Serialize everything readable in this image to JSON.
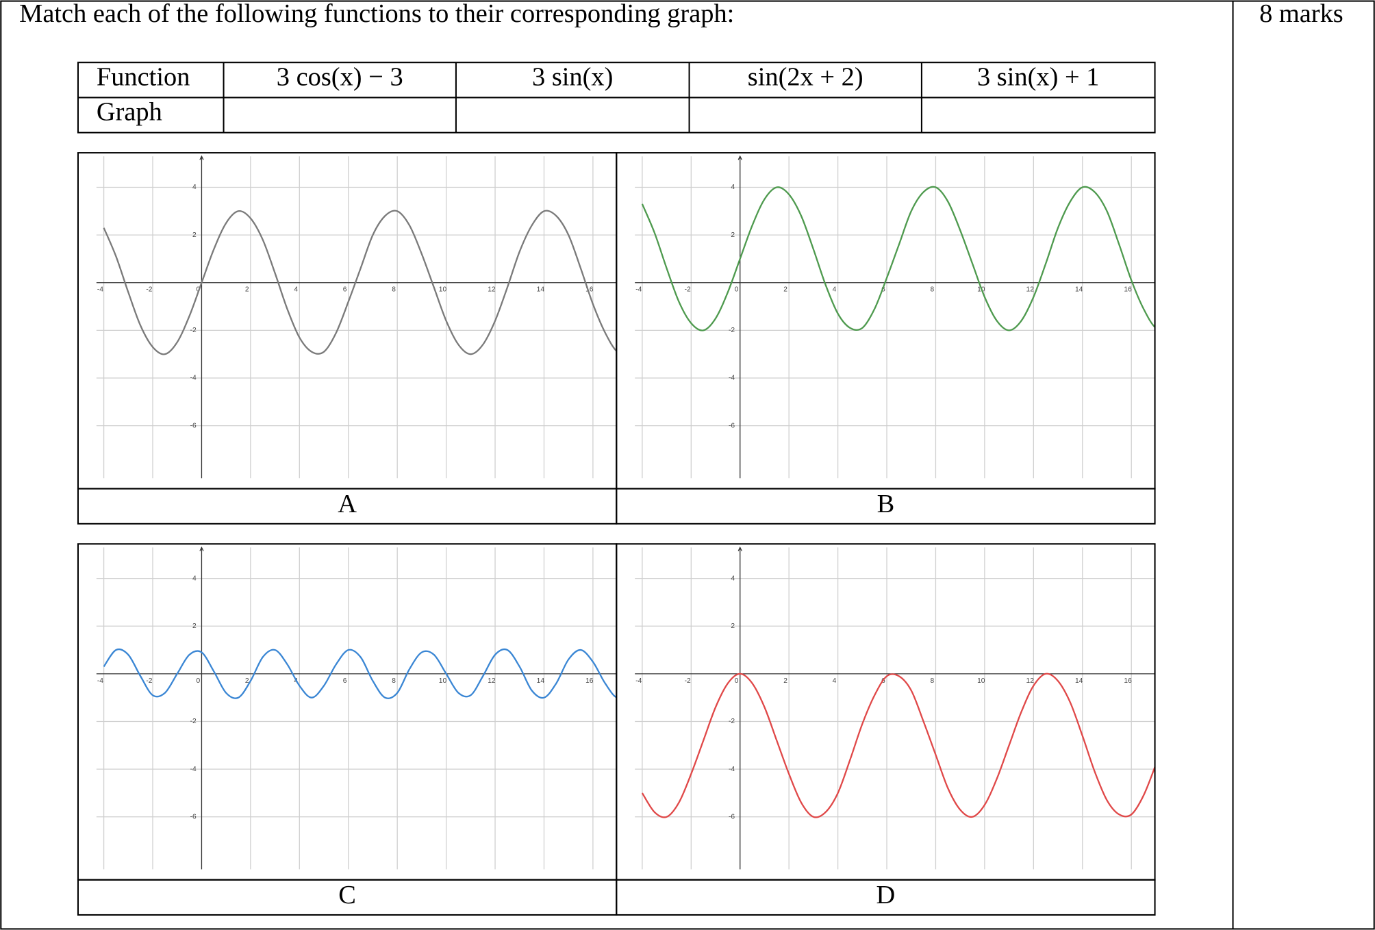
{
  "question": "Match each of the following functions to their corresponding graph:",
  "marks": "8 marks",
  "table": {
    "header": [
      "Function",
      "3 cos(x) − 3",
      "3 sin(x)",
      "sin(2x + 2)",
      "3 sin(x) + 1"
    ],
    "row_label": "Graph"
  },
  "chart_data": [
    {
      "type": "line",
      "label": "A",
      "color": "#7a7a7a",
      "x": [
        -4,
        -3.5,
        -3,
        -2.5,
        -2,
        -1.5,
        -1,
        -0.5,
        0,
        0.5,
        1,
        1.5,
        2,
        2.5,
        3,
        3.5,
        4,
        4.5,
        5,
        5.5,
        6,
        6.5,
        7,
        7.5,
        8,
        8.5,
        9,
        9.5,
        10,
        10.5,
        11,
        11.5,
        12,
        12.5,
        13,
        13.5,
        14,
        14.5,
        15,
        15.5,
        16,
        16.5,
        17,
        17.5
      ],
      "values": [
        2.3,
        1.1,
        -0.4,
        -1.8,
        -2.7,
        -3.0,
        -2.5,
        -1.4,
        0,
        1.4,
        2.5,
        3.0,
        2.7,
        1.8,
        0.4,
        -1.1,
        -2.3,
        -2.9,
        -2.9,
        -2.1,
        -0.8,
        0.6,
        2.0,
        2.8,
        3.0,
        2.4,
        1.2,
        -0.2,
        -1.6,
        -2.6,
        -3.0,
        -2.6,
        -1.6,
        -0.2,
        1.3,
        2.4,
        3.0,
        2.8,
        2.0,
        0.6,
        -0.9,
        -2.1,
        -2.9,
        -2.9
      ],
      "xlim": [
        -4.3,
        17.5
      ],
      "ylim": [
        -8.2,
        5.3
      ],
      "xticks": [
        -4,
        -2,
        0,
        2,
        4,
        6,
        8,
        10,
        12,
        14,
        16
      ],
      "yticks": [
        4,
        2,
        -2,
        -4,
        -6
      ],
      "grid": true
    },
    {
      "type": "line",
      "label": "B",
      "color": "#4e9a4e",
      "x": [
        -4,
        -3.5,
        -3,
        -2.5,
        -2,
        -1.5,
        -1,
        -0.5,
        0,
        0.5,
        1,
        1.5,
        2,
        2.5,
        3,
        3.5,
        4,
        4.5,
        5,
        5.5,
        6,
        6.5,
        7,
        7.5,
        8,
        8.5,
        9,
        9.5,
        10,
        10.5,
        11,
        11.5,
        12,
        12.5,
        13,
        13.5,
        14,
        14.5,
        15,
        15.5,
        16,
        16.5,
        17,
        17.5
      ],
      "values": [
        3.3,
        2.1,
        0.6,
        -0.8,
        -1.7,
        -2.0,
        -1.5,
        -0.4,
        1,
        2.4,
        3.5,
        4.0,
        3.7,
        2.8,
        1.4,
        -0.1,
        -1.3,
        -1.9,
        -1.9,
        -1.1,
        0.2,
        1.6,
        3.0,
        3.8,
        4.0,
        3.4,
        2.2,
        0.8,
        -0.6,
        -1.6,
        -2.0,
        -1.6,
        -0.6,
        0.8,
        2.3,
        3.4,
        4.0,
        3.8,
        3.0,
        1.6,
        0.1,
        -1.1,
        -1.9,
        -1.9
      ],
      "xlim": [
        -4.3,
        17.5
      ],
      "ylim": [
        -8.2,
        5.3
      ],
      "xticks": [
        -4,
        -2,
        0,
        2,
        4,
        6,
        8,
        10,
        12,
        14,
        16
      ],
      "yticks": [
        4,
        2,
        -2,
        -4,
        -6
      ],
      "grid": true
    },
    {
      "type": "line",
      "label": "C",
      "color": "#3a86d4",
      "x": [
        -4,
        -3.5,
        -3,
        -2.5,
        -2,
        -1.5,
        -1,
        -0.5,
        0,
        0.5,
        1,
        1.5,
        2,
        2.5,
        3,
        3.5,
        4,
        4.5,
        5,
        5.5,
        6,
        6.5,
        7,
        7.5,
        8,
        8.5,
        9,
        9.5,
        10,
        10.5,
        11,
        11.5,
        12,
        12.5,
        13,
        13.5,
        14,
        14.5,
        15,
        15.5,
        16,
        16.5,
        17,
        17.5
      ],
      "values": [
        0.3,
        1.0,
        0.8,
        -0.1,
        -0.9,
        -0.8,
        0,
        0.8,
        0.9,
        0.1,
        -0.8,
        -1.0,
        -0.3,
        0.7,
        1.0,
        0.4,
        -0.5,
        -1.0,
        -0.5,
        0.4,
        1.0,
        0.7,
        -0.3,
        -1.0,
        -0.8,
        0.2,
        0.9,
        0.8,
        0,
        -0.8,
        -0.9,
        -0.1,
        0.8,
        1.0,
        0.3,
        -0.7,
        -1.0,
        -0.4,
        0.6,
        1.0,
        0.5,
        -0.4,
        -1.0,
        -0.6
      ],
      "xlim": [
        -4.3,
        17.5
      ],
      "ylim": [
        -8.2,
        5.3
      ],
      "xticks": [
        -4,
        -2,
        0,
        2,
        4,
        6,
        8,
        10,
        12,
        14,
        16
      ],
      "yticks": [
        4,
        2,
        -2,
        -4,
        -6
      ],
      "grid": true
    },
    {
      "type": "line",
      "label": "D",
      "color": "#e04848",
      "x": [
        -4,
        -3.5,
        -3,
        -2.5,
        -2,
        -1.5,
        -1,
        -0.5,
        0,
        0.5,
        1,
        1.5,
        2,
        2.5,
        3,
        3.5,
        4,
        4.5,
        5,
        5.5,
        6,
        6.5,
        7,
        7.5,
        8,
        8.5,
        9,
        9.5,
        10,
        10.5,
        11,
        11.5,
        12,
        12.5,
        13,
        13.5,
        14,
        14.5,
        15,
        15.5,
        16,
        16.5,
        17,
        17.5
      ],
      "values": [
        -5.0,
        -5.8,
        -6.0,
        -5.4,
        -4.2,
        -2.8,
        -1.4,
        -0.4,
        0,
        -0.4,
        -1.4,
        -2.8,
        -4.2,
        -5.4,
        -6.0,
        -5.8,
        -5.0,
        -3.6,
        -2.1,
        -0.9,
        -0.1,
        -0.1,
        -0.7,
        -2.0,
        -3.4,
        -4.8,
        -5.7,
        -6.0,
        -5.5,
        -4.4,
        -3.0,
        -1.6,
        -0.5,
        0,
        -0.3,
        -1.2,
        -2.6,
        -4.1,
        -5.3,
        -5.9,
        -5.9,
        -5.1,
        -3.8,
        -2.3
      ],
      "xlim": [
        -4.3,
        17.5
      ],
      "ylim": [
        -8.2,
        5.3
      ],
      "xticks": [
        -4,
        -2,
        0,
        2,
        4,
        6,
        8,
        10,
        12,
        14,
        16
      ],
      "yticks": [
        4,
        2,
        -2,
        -4,
        -6
      ],
      "grid": true
    }
  ]
}
